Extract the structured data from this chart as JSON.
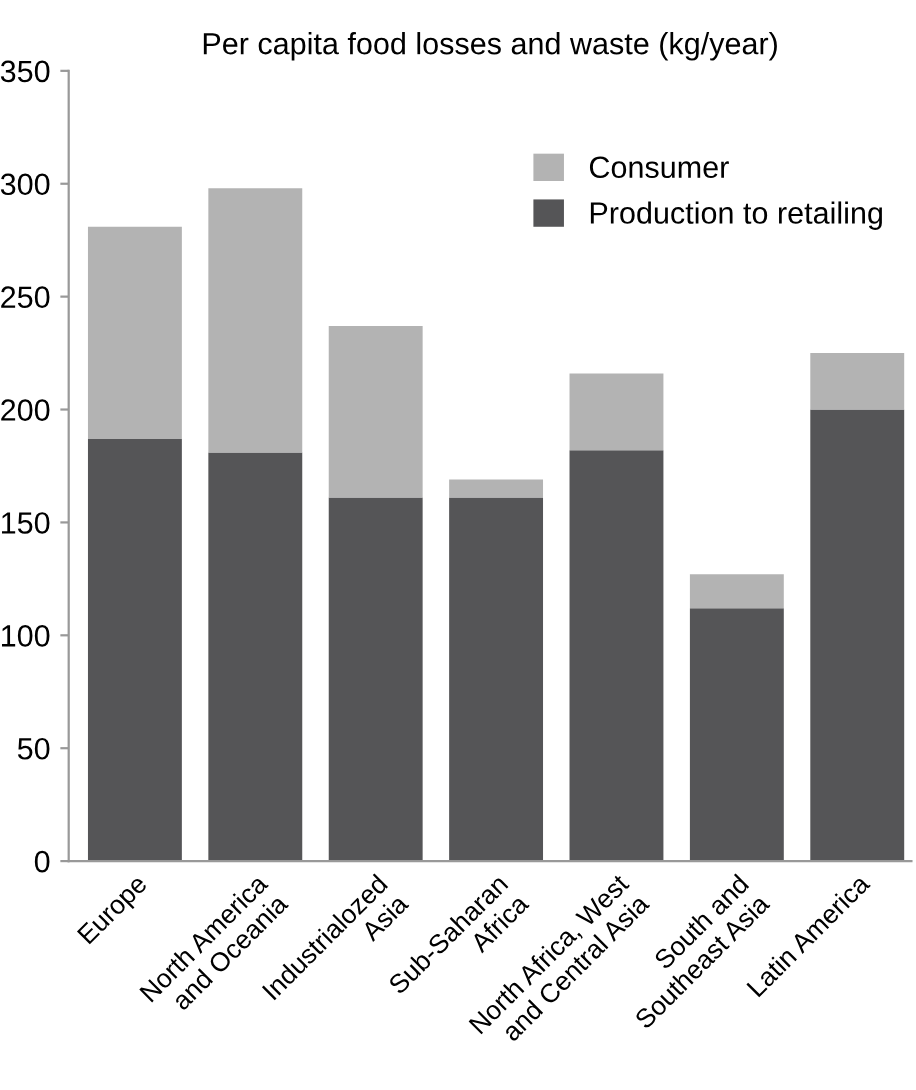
{
  "chart_data": {
    "type": "bar",
    "title": "Per capita food losses and waste (kg/year)",
    "categories": [
      "Europe",
      "North America\nand Oceania",
      "Industrialozed\nAsia",
      "Sub-Saharan\nAfrica",
      "North Africa, West\nand Central Asia",
      "South and\nSoutheast Asia",
      "Latin America"
    ],
    "stacked": true,
    "series": [
      {
        "name": "Production to retailing",
        "color": "#555557",
        "values": [
          187,
          181,
          161,
          161,
          182,
          112,
          200
        ]
      },
      {
        "name": "Consumer",
        "color": "#b3b3b3",
        "values": [
          94,
          117,
          76,
          8,
          34,
          15,
          25
        ]
      }
    ],
    "ylim": [
      0,
      350
    ],
    "yticks": [
      0,
      50,
      100,
      150,
      200,
      250,
      300,
      350
    ],
    "grid": false,
    "legend": "top right"
  }
}
